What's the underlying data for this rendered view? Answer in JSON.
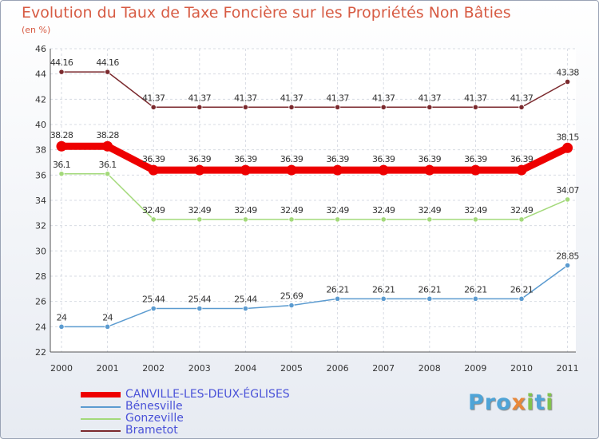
{
  "title": "Evolution du Taux de Taxe Foncière sur les Propriétés Non Bâties",
  "subtitle": "(en %)",
  "logo": {
    "p1": "Pro",
    "x": "x",
    "i": "i",
    "t": "t",
    "i2": "i"
  },
  "chart_data": {
    "type": "line",
    "title": "Evolution du Taux de Taxe Foncière sur les Propriétés Non Bâties",
    "ylabel": "(en %)",
    "xlabel": "",
    "ylim": [
      22,
      46
    ],
    "yticks": [
      22,
      24,
      26,
      28,
      30,
      32,
      34,
      36,
      38,
      40,
      42,
      44,
      46
    ],
    "grid": true,
    "legend_position": "bottom-left",
    "categories": [
      "2000",
      "2001",
      "2002",
      "2003",
      "2004",
      "2005",
      "2006",
      "2007",
      "2008",
      "2009",
      "2010",
      "2011"
    ],
    "series": [
      {
        "name": "CANVILLE-LES-DEUX-ÉGLISES",
        "color": "#ee0000",
        "values": [
          38.28,
          38.28,
          36.39,
          36.39,
          36.39,
          36.39,
          36.39,
          36.39,
          36.39,
          36.39,
          36.39,
          38.15
        ],
        "labels": [
          "38.28",
          "38.28",
          "36.39",
          "36.39",
          "36.39",
          "36.39",
          "36.39",
          "36.39",
          "36.39",
          "36.39",
          "36.39",
          "38.15"
        ]
      },
      {
        "name": "Bénesville",
        "color": "#5b9bd0",
        "values": [
          24,
          24,
          25.44,
          25.44,
          25.44,
          25.69,
          26.21,
          26.21,
          26.21,
          26.21,
          26.21,
          28.85
        ],
        "labels": [
          "24",
          "24",
          "25.44",
          "25.44",
          "25.44",
          "25.69",
          "26.21",
          "26.21",
          "26.21",
          "26.21",
          "26.21",
          "28.85"
        ]
      },
      {
        "name": "Gonzeville",
        "color": "#a3d97a",
        "values": [
          36.1,
          36.1,
          32.49,
          32.49,
          32.49,
          32.49,
          32.49,
          32.49,
          32.49,
          32.49,
          32.49,
          34.07
        ],
        "labels": [
          "36.1",
          "36.1",
          "32.49",
          "32.49",
          "32.49",
          "32.49",
          "32.49",
          "32.49",
          "32.49",
          "32.49",
          "32.49",
          "34.07"
        ]
      },
      {
        "name": "Brametot",
        "color": "#7b2a2e",
        "values": [
          44.16,
          44.16,
          41.37,
          41.37,
          41.37,
          41.37,
          41.37,
          41.37,
          41.37,
          41.37,
          41.37,
          43.38
        ],
        "labels": [
          "44.16",
          "44.16",
          "41.37",
          "41.37",
          "41.37",
          "41.37",
          "41.37",
          "41.37",
          "41.37",
          "41.37",
          "41.37",
          "43.38"
        ]
      }
    ]
  }
}
